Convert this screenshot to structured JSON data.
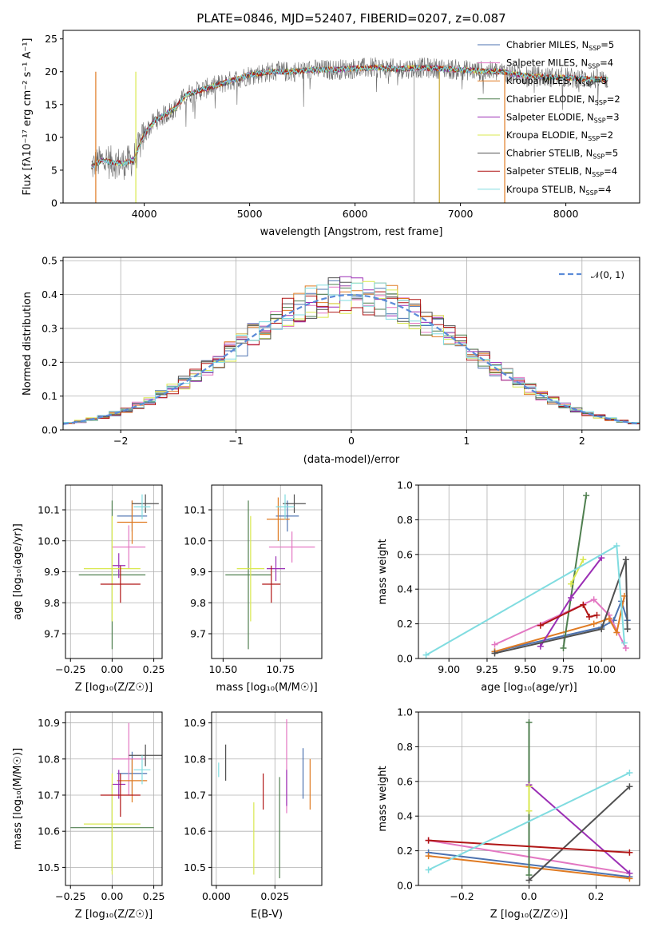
{
  "figure": {
    "title": "PLATE=0846, MJD=52407, FIBERID=0207, z=0.087"
  },
  "series_colors": {
    "Chabrier MILES": "#4c72b0",
    "Salpeter MILES": "#e377c2",
    "Kroupa MILES": "#e07b22",
    "Chabrier ELODIE": "#4f7f4f",
    "Salpeter ELODIE": "#9b2fb5",
    "Kroupa ELODIE": "#d9e84f",
    "Chabrier STELIB": "#505050",
    "Salpeter STELIB": "#b01515",
    "Kroupa STELIB": "#80dce0"
  },
  "chart_data": [
    {
      "id": "spectrum",
      "type": "line",
      "title": "PLATE=0846, MJD=52407, FIBERID=0207, z=0.087",
      "xlabel": "wavelength [Angstrom, rest frame]",
      "ylabel": "Flux [fλ10⁻¹⁷ erg cm⁻² s⁻¹ A⁻¹]",
      "xlim": [
        3230,
        8700
      ],
      "ylim": [
        0,
        26.3
      ],
      "xticks": [
        4000,
        5000,
        6000,
        7000,
        8000
      ],
      "yticks": [
        0,
        5,
        10,
        15,
        20,
        25
      ],
      "grid": false,
      "legend_position": "right",
      "legend": [
        {
          "label": "Chabrier MILES, N",
          "sub": "SSP",
          "suffix": "=5"
        },
        {
          "label": "Salpeter MILES, N",
          "sub": "SSP",
          "suffix": "=4"
        },
        {
          "label": "Kroupa MILES, N",
          "sub": "SSP",
          "suffix": "=5"
        },
        {
          "label": "Chabrier ELODIE, N",
          "sub": "SSP",
          "suffix": "=2"
        },
        {
          "label": "Salpeter ELODIE, N",
          "sub": "SSP",
          "suffix": "=3"
        },
        {
          "label": "Kroupa ELODIE, N",
          "sub": "SSP",
          "suffix": "=2"
        },
        {
          "label": "Chabrier STELIB, N",
          "sub": "SSP",
          "suffix": "=5"
        },
        {
          "label": "Salpeter STELIB, N",
          "sub": "SSP",
          "suffix": "=4"
        },
        {
          "label": "Kroupa STELIB, N",
          "sub": "SSP",
          "suffix": "=4"
        }
      ],
      "continuum": [
        [
          3500,
          5.5
        ],
        [
          3600,
          6.5
        ],
        [
          3700,
          6.2
        ],
        [
          3800,
          6.0
        ],
        [
          3900,
          6.6
        ],
        [
          4000,
          10.5
        ],
        [
          4100,
          12.5
        ],
        [
          4200,
          13.5
        ],
        [
          4300,
          14.5
        ],
        [
          4400,
          16.5
        ],
        [
          4600,
          17.5
        ],
        [
          4800,
          18.5
        ],
        [
          5000,
          19.5
        ],
        [
          5200,
          20.0
        ],
        [
          5400,
          20.0
        ],
        [
          5600,
          20.3
        ],
        [
          5800,
          20.3
        ],
        [
          6000,
          20.5
        ],
        [
          6200,
          20.6
        ],
        [
          6400,
          20.4
        ],
        [
          6600,
          20.6
        ],
        [
          6800,
          20.5
        ],
        [
          7000,
          20.3
        ],
        [
          7200,
          20.1
        ],
        [
          7400,
          20.0
        ],
        [
          7600,
          19.4
        ],
        [
          7800,
          19.2
        ],
        [
          8000,
          19.1
        ],
        [
          8200,
          18.9
        ],
        [
          8400,
          18.8
        ]
      ],
      "noise_amplitude": 1.6
    },
    {
      "id": "residuals",
      "type": "step-histogram",
      "xlabel": "(data-model)/error",
      "ylabel": "Normed distribution",
      "xlim": [
        -2.5,
        2.5
      ],
      "ylim": [
        0,
        0.51
      ],
      "xticks": [
        -2,
        -1,
        0,
        1,
        2
      ],
      "yticks": [
        0.0,
        0.1,
        0.2,
        0.3,
        0.4,
        0.5
      ],
      "grid": true,
      "legend": [
        "𝒩(0, 1)"
      ],
      "bin_width": 0.1,
      "reference_curve": "normal(0,1)",
      "reference_color": "#5b8bd8"
    },
    {
      "id": "age-Z",
      "type": "errorbar",
      "xlabel": "Z [log₁₀(Z/Z☉)]",
      "ylabel": "age  [log₁₀(age/yr)]",
      "xlim": [
        -0.28,
        0.3
      ],
      "ylim": [
        9.62,
        10.18
      ],
      "xticks": [
        -0.25,
        0.0,
        0.25
      ],
      "xticklabels": [
        "−0.25",
        "0.00",
        "0.25"
      ],
      "yticks": [
        9.7,
        9.8,
        9.9,
        10.0,
        10.1
      ],
      "grid": true,
      "points": [
        {
          "s": "Chabrier MILES",
          "x": 0.12,
          "xerr": 0.09,
          "y": 10.08,
          "yerr": 0.05
        },
        {
          "s": "Salpeter MILES",
          "x": 0.1,
          "xerr": 0.1,
          "y": 9.98,
          "yerr": 0.07
        },
        {
          "s": "Kroupa MILES",
          "x": 0.12,
          "xerr": 0.09,
          "y": 10.06,
          "yerr": 0.07
        },
        {
          "s": "Chabrier ELODIE",
          "x": 0.0,
          "xerr": 0.2,
          "y": 9.89,
          "yerr": 0.24
        },
        {
          "s": "Salpeter ELODIE",
          "x": 0.04,
          "xerr": 0.04,
          "y": 9.92,
          "yerr": 0.04
        },
        {
          "s": "Kroupa ELODIE",
          "x": 0.0,
          "xerr": 0.17,
          "y": 9.91,
          "yerr": 0.17
        },
        {
          "s": "Chabrier STELIB",
          "x": 0.2,
          "xerr": 0.08,
          "y": 10.12,
          "yerr": 0.03
        },
        {
          "s": "Salpeter STELIB",
          "x": 0.05,
          "xerr": 0.12,
          "y": 9.86,
          "yerr": 0.06
        },
        {
          "s": "Kroupa STELIB",
          "x": 0.18,
          "xerr": 0.05,
          "y": 10.11,
          "yerr": 0.04
        }
      ]
    },
    {
      "id": "age-mass",
      "type": "errorbar",
      "xlabel": "mass [log₁₀(M/M☉)]",
      "ylabel": "",
      "xlim": [
        10.45,
        10.93
      ],
      "ylim": [
        9.62,
        10.18
      ],
      "xticks": [
        10.5,
        10.75
      ],
      "xticklabels": [
        "10.50",
        "10.75"
      ],
      "yticks": [
        9.7,
        9.8,
        9.9,
        10.0,
        10.1
      ],
      "grid": true,
      "points": [
        {
          "s": "Chabrier MILES",
          "x": 10.78,
          "xerr": 0.05,
          "y": 10.08,
          "yerr": 0.05
        },
        {
          "s": "Salpeter MILES",
          "x": 10.8,
          "xerr": 0.1,
          "y": 9.98,
          "yerr": 0.05
        },
        {
          "s": "Kroupa MILES",
          "x": 10.74,
          "xerr": 0.05,
          "y": 10.07,
          "yerr": 0.07
        },
        {
          "s": "Chabrier ELODIE",
          "x": 10.61,
          "xerr": 0.1,
          "y": 9.89,
          "yerr": 0.24
        },
        {
          "s": "Salpeter ELODIE",
          "x": 10.73,
          "xerr": 0.04,
          "y": 9.91,
          "yerr": 0.04
        },
        {
          "s": "Kroupa ELODIE",
          "x": 10.62,
          "xerr": 0.06,
          "y": 9.91,
          "yerr": 0.17
        },
        {
          "s": "Chabrier STELIB",
          "x": 10.81,
          "xerr": 0.05,
          "y": 10.12,
          "yerr": 0.03
        },
        {
          "s": "Salpeter STELIB",
          "x": 10.71,
          "xerr": 0.04,
          "y": 9.86,
          "yerr": 0.06
        },
        {
          "s": "Kroupa STELIB",
          "x": 10.77,
          "xerr": 0.04,
          "y": 10.11,
          "yerr": 0.04
        }
      ]
    },
    {
      "id": "weight-age",
      "type": "line",
      "xlabel": "age  [log₁₀(age/yr)]",
      "ylabel": "mass weight",
      "xlim": [
        8.8,
        10.25
      ],
      "ylim": [
        0,
        1
      ],
      "xticks": [
        9.0,
        9.25,
        9.5,
        9.75,
        10.0
      ],
      "xticklabels": [
        "9.00",
        "9.25",
        "9.50",
        "9.75",
        "10.00"
      ],
      "yticks": [
        0.0,
        0.2,
        0.4,
        0.6,
        0.8,
        1.0
      ],
      "grid": true,
      "series": [
        {
          "name": "Chabrier MILES",
          "x": [
            9.3,
            10.0,
            10.08,
            10.13,
            10.17
          ],
          "y": [
            0.04,
            0.18,
            0.22,
            0.33,
            0.22
          ]
        },
        {
          "name": "Salpeter MILES",
          "x": [
            9.3,
            9.95,
            10.05,
            10.16
          ],
          "y": [
            0.08,
            0.34,
            0.25,
            0.06
          ]
        },
        {
          "name": "Kroupa MILES",
          "x": [
            9.3,
            9.95,
            10.05,
            10.1,
            10.15
          ],
          "y": [
            0.04,
            0.2,
            0.23,
            0.15,
            0.36
          ]
        },
        {
          "name": "Chabrier ELODIE",
          "x": [
            9.75,
            9.9
          ],
          "y": [
            0.06,
            0.94
          ]
        },
        {
          "name": "Salpeter ELODIE",
          "x": [
            9.6,
            9.8,
            10.0
          ],
          "y": [
            0.07,
            0.35,
            0.58
          ]
        },
        {
          "name": "Kroupa ELODIE",
          "x": [
            9.8,
            9.88
          ],
          "y": [
            0.43,
            0.57
          ]
        },
        {
          "name": "Chabrier STELIB",
          "x": [
            9.3,
            10.0,
            10.16,
            10.17
          ],
          "y": [
            0.03,
            0.17,
            0.57,
            0.17
          ]
        },
        {
          "name": "Salpeter STELIB",
          "x": [
            9.6,
            9.88,
            9.92,
            9.97
          ],
          "y": [
            0.19,
            0.31,
            0.24,
            0.25
          ]
        },
        {
          "name": "Kroupa STELIB",
          "x": [
            8.85,
            10.1,
            10.15
          ],
          "y": [
            0.02,
            0.65,
            0.09
          ]
        }
      ]
    },
    {
      "id": "mass-Z",
      "type": "errorbar",
      "xlabel": "Z [log₁₀(Z/Z☉)]",
      "ylabel": "mass [log₁₀(M/M☉)]",
      "xlim": [
        -0.28,
        0.3
      ],
      "ylim": [
        10.45,
        10.93
      ],
      "xticks": [
        -0.25,
        0.0,
        0.25
      ],
      "xticklabels": [
        "−0.25",
        "0.00",
        "0.25"
      ],
      "yticks": [
        10.5,
        10.6,
        10.7,
        10.8,
        10.9
      ],
      "grid": true,
      "points": [
        {
          "s": "Chabrier MILES",
          "x": 0.12,
          "xerr": 0.09,
          "y": 10.76,
          "yerr": 0.06
        },
        {
          "s": "Salpeter MILES",
          "x": 0.1,
          "xerr": 0.1,
          "y": 10.8,
          "yerr": 0.1
        },
        {
          "s": "Kroupa MILES",
          "x": 0.12,
          "xerr": 0.09,
          "y": 10.74,
          "yerr": 0.06
        },
        {
          "s": "Chabrier ELODIE",
          "x": 0.0,
          "xerr": 0.25,
          "y": 10.61,
          "yerr": 0.12
        },
        {
          "s": "Salpeter ELODIE",
          "x": 0.04,
          "xerr": 0.04,
          "y": 10.73,
          "yerr": 0.04
        },
        {
          "s": "Kroupa ELODIE",
          "x": 0.0,
          "xerr": 0.17,
          "y": 10.62,
          "yerr": 0.14
        },
        {
          "s": "Chabrier STELIB",
          "x": 0.2,
          "xerr": 0.1,
          "y": 10.81,
          "yerr": 0.03
        },
        {
          "s": "Salpeter STELIB",
          "x": 0.05,
          "xerr": 0.12,
          "y": 10.7,
          "yerr": 0.06
        },
        {
          "s": "Kroupa STELIB",
          "x": 0.18,
          "xerr": 0.05,
          "y": 10.77,
          "yerr": 0.04
        }
      ]
    },
    {
      "id": "mass-ebv",
      "type": "errorbar",
      "xlabel": "E(B-V)",
      "ylabel": "",
      "xlim": [
        -0.002,
        0.045
      ],
      "ylim": [
        10.45,
        10.93
      ],
      "xticks": [
        0.0,
        0.025
      ],
      "xticklabels": [
        "0.000",
        "0.025"
      ],
      "yticks": [
        10.5,
        10.6,
        10.7,
        10.8,
        10.9
      ],
      "grid": true,
      "points": [
        {
          "s": "Chabrier MILES",
          "x": 0.037,
          "xerr": 0,
          "y": 10.76,
          "yerr": 0.07
        },
        {
          "s": "Salpeter MILES",
          "x": 0.03,
          "xerr": 0,
          "y": 10.78,
          "yerr": 0.13
        },
        {
          "s": "Kroupa MILES",
          "x": 0.04,
          "xerr": 0,
          "y": 10.73,
          "yerr": 0.07
        },
        {
          "s": "Chabrier ELODIE",
          "x": 0.027,
          "xerr": 0,
          "y": 10.61,
          "yerr": 0.14
        },
        {
          "s": "Salpeter ELODIE",
          "x": 0.03,
          "xerr": 0,
          "y": 10.72,
          "yerr": 0.05
        },
        {
          "s": "Kroupa ELODIE",
          "x": 0.016,
          "xerr": 0,
          "y": 10.58,
          "yerr": 0.1
        },
        {
          "s": "Chabrier STELIB",
          "x": 0.004,
          "xerr": 0,
          "y": 10.79,
          "yerr": 0.05
        },
        {
          "s": "Salpeter STELIB",
          "x": 0.02,
          "xerr": 0,
          "y": 10.71,
          "yerr": 0.05
        },
        {
          "s": "Kroupa STELIB",
          "x": 0.001,
          "xerr": 0,
          "y": 10.77,
          "yerr": 0.02
        }
      ]
    },
    {
      "id": "weight-Z",
      "type": "line",
      "xlabel": "Z [log₁₀(Z/Z☉)]",
      "ylabel": "mass weight",
      "xlim": [
        -0.33,
        0.33
      ],
      "ylim": [
        0,
        1
      ],
      "xticks": [
        -0.2,
        0.0,
        0.2
      ],
      "xticklabels": [
        "−0.2",
        "0.0",
        "0.2"
      ],
      "yticks": [
        0.0,
        0.2,
        0.4,
        0.6,
        0.8,
        1.0
      ],
      "grid": true,
      "series": [
        {
          "name": "Chabrier MILES",
          "x": [
            -0.3,
            0.3
          ],
          "y": [
            0.19,
            0.05
          ]
        },
        {
          "name": "Salpeter MILES",
          "x": [
            -0.3,
            0.3
          ],
          "y": [
            0.26,
            0.07
          ]
        },
        {
          "name": "Kroupa MILES",
          "x": [
            -0.3,
            0.3
          ],
          "y": [
            0.17,
            0.04
          ]
        },
        {
          "name": "Chabrier ELODIE",
          "x": [
            0.0,
            0.0
          ],
          "y": [
            0.94,
            0.06
          ]
        },
        {
          "name": "Salpeter ELODIE",
          "x": [
            0.0,
            0.3
          ],
          "y": [
            0.58,
            0.07
          ]
        },
        {
          "name": "Kroupa ELODIE",
          "x": [
            0.0,
            0.0
          ],
          "y": [
            0.57,
            0.43
          ]
        },
        {
          "name": "Chabrier STELIB",
          "x": [
            0.0,
            0.3
          ],
          "y": [
            0.03,
            0.57
          ]
        },
        {
          "name": "Salpeter STELIB",
          "x": [
            -0.3,
            0.3
          ],
          "y": [
            0.26,
            0.19
          ]
        },
        {
          "name": "Kroupa STELIB",
          "x": [
            -0.3,
            0.3
          ],
          "y": [
            0.09,
            0.65
          ]
        }
      ]
    }
  ]
}
